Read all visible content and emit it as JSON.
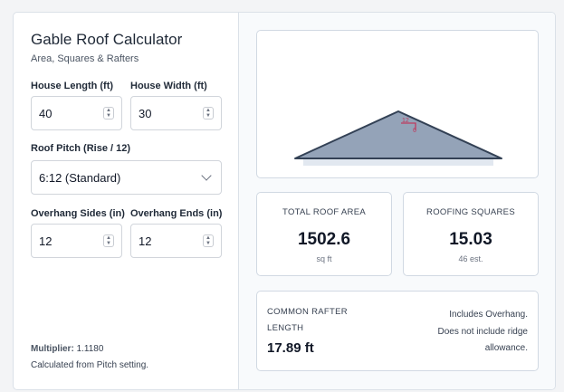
{
  "header": {
    "title": "Gable Roof Calculator",
    "subtitle": "Area, Squares & Rafters"
  },
  "inputs": {
    "house_length": {
      "label": "House Length (ft)",
      "value": "40"
    },
    "house_width": {
      "label": "House Width (ft)",
      "value": "30"
    },
    "roof_pitch": {
      "label": "Roof Pitch (Rise / 12)",
      "value": "6:12 (Standard)"
    },
    "overhang_sides": {
      "label": "Overhang Sides (in)",
      "value": "12"
    },
    "overhang_ends": {
      "label": "Overhang Ends (in)",
      "value": "12"
    }
  },
  "footer": {
    "multiplier_label": "Multiplier:",
    "multiplier_value": "1.1180",
    "note": "Calculated from Pitch setting."
  },
  "diagram": {
    "run_label": "12",
    "rise_label": "6",
    "fill_color": "#94a3b8",
    "stroke_color": "#334155",
    "pitch_color": "#be3b5f"
  },
  "results": {
    "total_area": {
      "label": "TOTAL ROOF AREA",
      "value": "1502.6",
      "unit": "sq ft"
    },
    "squares": {
      "label": "ROOFING SQUARES",
      "value": "15.03",
      "sub": "46 est."
    },
    "rafter": {
      "label_1": "COMMON RAFTER",
      "label_2": "LENGTH",
      "value": "17.89 ft",
      "note_1": "Includes Overhang.",
      "note_2": "Does not include ridge",
      "note_3": "allowance."
    }
  }
}
